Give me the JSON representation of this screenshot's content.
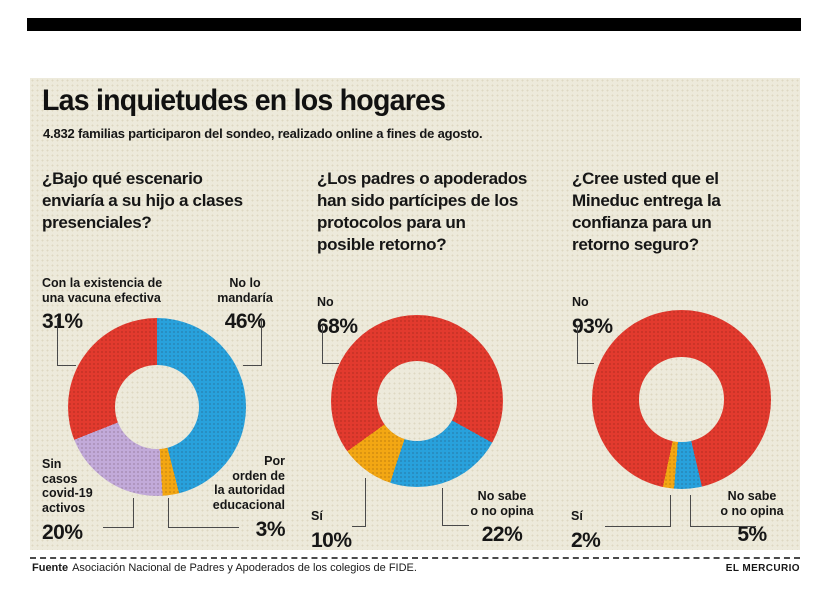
{
  "header": {
    "title": "Las inquietudes en los hogares",
    "subtitle": "4.832 familias participaron del sondeo, realizado online a fines de agosto."
  },
  "palette": {
    "red": "#e23a2e",
    "blue": "#28a1dc",
    "yellow": "#f3a713",
    "purple": "#c2aad9",
    "panel_bg": "#edeadb",
    "masthead": "#000000"
  },
  "chart_data": [
    {
      "type": "pie",
      "style": "donut",
      "units": "%",
      "title": "¿Bajo qué escenario enviaría a su hijo a clases presenciales?",
      "question_display": "¿Bajo qué escenario\nenviaría a su hijo a clases\npresenciales?",
      "start_angle_deg": 0,
      "segments": [
        {
          "label": "No lo mandaría",
          "value": 46,
          "color": "blue"
        },
        {
          "label": "Por orden de la autoridad educacional",
          "value": 3,
          "color": "yellow"
        },
        {
          "label": "Sin casos covid-19 activos",
          "value": 20,
          "color": "purple"
        },
        {
          "label": "Con la existencia de una vacuna efectiva",
          "value": 31,
          "color": "red"
        }
      ],
      "callouts": {
        "top_left": {
          "label": "Con la existencia de\nuna vacuna efectiva",
          "value": "31%"
        },
        "top_right": {
          "label": "No lo\nmandaría",
          "value": "46%"
        },
        "bottom_left": {
          "label": "Sin\ncasos\ncovid-19\nactivos",
          "value": "20%"
        },
        "bottom_right": {
          "label": "Por\norden de\nla autoridad\neducacional",
          "value": "3%"
        }
      }
    },
    {
      "type": "pie",
      "style": "donut",
      "units": "%",
      "title": "¿Los padres o apoderados han sido partícipes de los protocolos para un posible retorno?",
      "question_display": "¿Los padres o apoderados\nhan sido partícipes de los\nprotocolos para un\nposible retorno?",
      "start_angle_deg": 119,
      "segments": [
        {
          "label": "No sabe o no opina",
          "value": 22,
          "color": "blue"
        },
        {
          "label": "Sí",
          "value": 10,
          "color": "yellow"
        },
        {
          "label": "No",
          "value": 68,
          "color": "red"
        }
      ],
      "callouts": {
        "top_left": {
          "label": "No",
          "value": "68%"
        },
        "bottom_left": {
          "label": "Sí",
          "value": "10%"
        },
        "bottom_right": {
          "label": "No sabe\no no opina",
          "value": "22%"
        }
      }
    },
    {
      "type": "pie",
      "style": "donut",
      "units": "%",
      "title": "¿Cree usted que el Mineduc entrega la confianza para un retorno seguro?",
      "question_display": "¿Cree usted que el\nMineduc entrega la\nconfianza para un\nretorno seguro?",
      "start_angle_deg": 166.8,
      "segments": [
        {
          "label": "No sabe o no opina",
          "value": 5,
          "color": "blue"
        },
        {
          "label": "Sí",
          "value": 2,
          "color": "yellow"
        },
        {
          "label": "No",
          "value": 93,
          "color": "red"
        }
      ],
      "callouts": {
        "top_left": {
          "label": "No",
          "value": "93%"
        },
        "bottom_left": {
          "label": "Sí",
          "value": "2%"
        },
        "bottom_right": {
          "label": "No sabe\no no opina",
          "value": "5%"
        }
      }
    }
  ],
  "footer": {
    "source_label": "Fuente",
    "source_text": "Asociación Nacional de Padres y Apoderados de los colegios de FIDE.",
    "credit": "EL MERCURIO"
  }
}
